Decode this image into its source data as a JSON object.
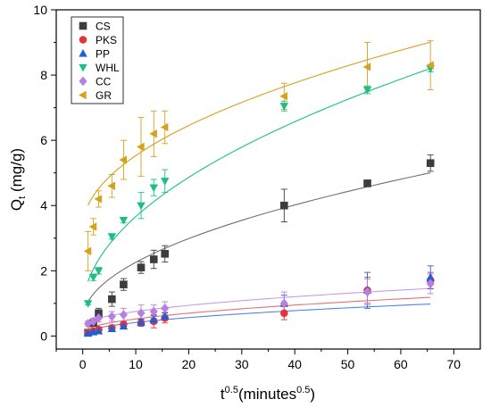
{
  "chart_data": {
    "type": "scatter",
    "xlabel": {
      "base": "t",
      "sup": "0.5",
      "paren_open": "(minutes",
      "paren_sup": "0.5",
      "paren_close": ")"
    },
    "ylabel": {
      "base": "Q",
      "sub": "t",
      "rest": " (mg/g)"
    },
    "xlim": [
      -5,
      75
    ],
    "ylim": [
      -0.4,
      10
    ],
    "xticks": [
      0,
      10,
      20,
      30,
      40,
      50,
      60,
      70
    ],
    "yticks": [
      0,
      2,
      4,
      6,
      8,
      10
    ],
    "grid": false,
    "legend_position": "top-left",
    "series": [
      {
        "name": "CS",
        "marker": "square",
        "color": "#3d3d3d",
        "fit_color": "#707070",
        "x": [
          1.0,
          2.0,
          3.0,
          5.5,
          7.7,
          11.0,
          13.4,
          15.5,
          38.0,
          53.7,
          65.6
        ],
        "y": [
          0.1,
          0.4,
          0.7,
          1.13,
          1.58,
          2.1,
          2.35,
          2.52,
          4.0,
          4.68,
          5.3
        ],
        "err": [
          0.04,
          0.1,
          0.15,
          0.22,
          0.18,
          0.18,
          0.28,
          0.25,
          0.5,
          0.08,
          0.25
        ],
        "fit": {
          "a": 0.5,
          "k": 0.556
        }
      },
      {
        "name": "PKS",
        "marker": "circle",
        "color": "#e8333a",
        "fit_color": "#ec6f72",
        "x": [
          1.0,
          2.0,
          3.0,
          5.5,
          7.7,
          11.0,
          13.4,
          15.5,
          38.0,
          53.7,
          65.6
        ],
        "y": [
          0.1,
          0.15,
          0.2,
          0.25,
          0.35,
          0.4,
          0.45,
          0.55,
          0.7,
          1.4,
          1.7
        ],
        "err": [
          0.05,
          0.05,
          0.06,
          0.08,
          0.08,
          0.1,
          0.2,
          0.15,
          0.2,
          0.4,
          0.25
        ],
        "fit": {
          "a": 0.1,
          "k": 0.134
        }
      },
      {
        "name": "PP",
        "marker": "triangle-up",
        "color": "#1f5fd6",
        "fit_color": "#4a86e8",
        "x": [
          1.0,
          2.0,
          3.0,
          5.5,
          7.7,
          11.0,
          13.4,
          15.5,
          38.0,
          53.7,
          65.6
        ],
        "y": [
          0.08,
          0.12,
          0.15,
          0.22,
          0.3,
          0.42,
          0.5,
          0.6,
          1.0,
          1.4,
          1.8
        ],
        "err": [
          0.04,
          0.05,
          0.05,
          0.06,
          0.08,
          0.1,
          0.12,
          0.12,
          0.25,
          0.55,
          0.35
        ],
        "fit": {
          "a": 0.05,
          "k": 0.115
        }
      },
      {
        "name": "WHL",
        "marker": "triangle-down",
        "color": "#1bbf86",
        "fit_color": "#1bbf86",
        "x": [
          1.0,
          2.0,
          3.0,
          5.5,
          7.7,
          11.0,
          13.4,
          15.5,
          38.0,
          53.7,
          65.6
        ],
        "y": [
          1.0,
          1.8,
          2.0,
          3.05,
          3.55,
          4.0,
          4.55,
          4.75,
          7.05,
          7.55,
          8.2
        ],
        "err": [
          0.05,
          0.1,
          0.1,
          0.08,
          0.08,
          0.4,
          0.25,
          0.35,
          0.15,
          0.12,
          0.1
        ],
        "fit": {
          "a": 0.75,
          "k": 0.92
        }
      },
      {
        "name": "CC",
        "marker": "diamond",
        "color": "#b87fe0",
        "fit_color": "#c79de8",
        "x": [
          1.0,
          2.0,
          3.0,
          5.5,
          7.7,
          11.0,
          13.4,
          15.5,
          38.0,
          53.7,
          65.6
        ],
        "y": [
          0.38,
          0.45,
          0.55,
          0.6,
          0.65,
          0.7,
          0.75,
          0.85,
          1.0,
          1.35,
          1.6
        ],
        "err": [
          0.08,
          0.1,
          0.12,
          0.15,
          0.2,
          0.25,
          0.2,
          0.2,
          0.35,
          0.4,
          0.3
        ],
        "fit": {
          "a": 0.3,
          "k": 0.143
        }
      },
      {
        "name": "GR",
        "marker": "triangle-left",
        "color": "#d6a11c",
        "fit_color": "#d6a11c",
        "x": [
          1.0,
          2.0,
          3.0,
          5.5,
          7.7,
          11.0,
          13.4,
          15.5,
          38.0,
          53.7,
          65.6
        ],
        "y": [
          2.6,
          3.35,
          4.2,
          4.6,
          5.4,
          5.8,
          6.2,
          6.4,
          7.35,
          8.25,
          8.3
        ],
        "err": [
          0.6,
          0.25,
          0.25,
          0.35,
          0.6,
          0.9,
          0.7,
          0.5,
          0.4,
          0.75,
          0.75
        ],
        "fit": {
          "a": 3.3,
          "k": 0.705
        }
      }
    ]
  }
}
